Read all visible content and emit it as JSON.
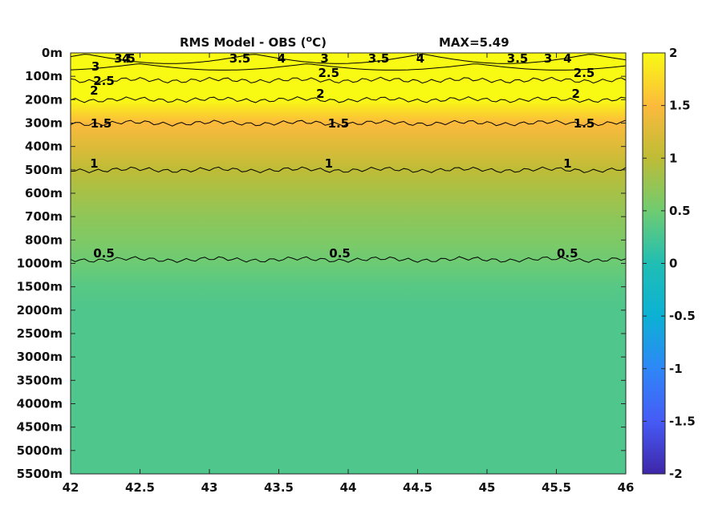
{
  "chart_data": {
    "type": "heatmap",
    "title": "RMS Model - OBS (°C)",
    "title_main": "RMS Model - OBS (",
    "title_deg": "o",
    "title_unit": "C)",
    "max_label": "MAX=5.49",
    "xlabel": "",
    "ylabel": "",
    "x_ticks": [
      "42",
      "42.5",
      "43",
      "43.5",
      "44",
      "44.5",
      "45",
      "45.5",
      "46"
    ],
    "x_values": [
      42,
      42.5,
      43,
      43.5,
      44,
      44.5,
      45,
      45.5,
      46
    ],
    "xlim": [
      42,
      46
    ],
    "y_ticks": [
      "0m",
      "100m",
      "200m",
      "300m",
      "400m",
      "500m",
      "600m",
      "700m",
      "800m",
      "1000m",
      "1500m",
      "2000m",
      "2500m",
      "3000m",
      "3500m",
      "4000m",
      "4500m",
      "5000m",
      "5500m"
    ],
    "depth_profile": [
      {
        "depth": "0m",
        "value": 3.8
      },
      {
        "depth": "100m",
        "value": 2.6
      },
      {
        "depth": "200m",
        "value": 2.0
      },
      {
        "depth": "300m",
        "value": 1.5
      },
      {
        "depth": "400m",
        "value": 1.25
      },
      {
        "depth": "500m",
        "value": 1.0
      },
      {
        "depth": "600m",
        "value": 0.85
      },
      {
        "depth": "700m",
        "value": 0.7
      },
      {
        "depth": "800m",
        "value": 0.6
      },
      {
        "depth": "1000m",
        "value": 0.48
      },
      {
        "depth": "1500m",
        "value": 0.35
      },
      {
        "depth": "2000m",
        "value": 0.3
      },
      {
        "depth": "2500m",
        "value": 0.3
      },
      {
        "depth": "5500m",
        "value": 0.3
      }
    ],
    "contour_levels": [
      0.5,
      1,
      1.5,
      2,
      2.5,
      3,
      3.5,
      4
    ],
    "contour_labels": [
      {
        "text": "4",
        "x": 42.4,
        "depth": "0m"
      },
      {
        "text": "3.5",
        "x": 42.39,
        "depth": "0m"
      },
      {
        "text": "3",
        "x": 42.18,
        "depth": "0m"
      },
      {
        "text": "2.5",
        "x": 42.24,
        "depth": "100m"
      },
      {
        "text": "2",
        "x": 42.17,
        "depth": "100m"
      },
      {
        "text": "3.5",
        "x": 43.22,
        "depth": "0m"
      },
      {
        "text": "4",
        "x": 43.52,
        "depth": "0m"
      },
      {
        "text": "3",
        "x": 43.83,
        "depth": "0m"
      },
      {
        "text": "3.5",
        "x": 44.22,
        "depth": "0m"
      },
      {
        "text": "4",
        "x": 44.52,
        "depth": "0m"
      },
      {
        "text": "3.5",
        "x": 45.22,
        "depth": "0m"
      },
      {
        "text": "4",
        "x": 45.58,
        "depth": "0m"
      },
      {
        "text": "3",
        "x": 45.44,
        "depth": "0m"
      },
      {
        "text": "2.5",
        "x": 45.7,
        "depth": "100m"
      },
      {
        "text": "2.5",
        "x": 43.86,
        "depth": "100m"
      },
      {
        "text": "2",
        "x": 43.8,
        "depth": "200m"
      },
      {
        "text": "2",
        "x": 45.64,
        "depth": "200m"
      },
      {
        "text": "1.5",
        "x": 42.22,
        "depth": "300m"
      },
      {
        "text": "1.5",
        "x": 43.93,
        "depth": "300m"
      },
      {
        "text": "1.5",
        "x": 45.7,
        "depth": "300m"
      },
      {
        "text": "1",
        "x": 42.17,
        "depth": "500m"
      },
      {
        "text": "1",
        "x": 43.86,
        "depth": "500m"
      },
      {
        "text": "1",
        "x": 45.58,
        "depth": "500m"
      },
      {
        "text": "0.5",
        "x": 42.24,
        "depth": "1000m"
      },
      {
        "text": "0.5",
        "x": 43.94,
        "depth": "1000m"
      },
      {
        "text": "0.5",
        "x": 45.58,
        "depth": "1000m"
      }
    ],
    "colorbar": {
      "min": -2,
      "max": 2,
      "ticks": [
        "2",
        "1.5",
        "1",
        "0.5",
        "0",
        "-0.5",
        "-1",
        "-1.5",
        "-2"
      ],
      "colormap": "parula"
    },
    "grid": false
  }
}
